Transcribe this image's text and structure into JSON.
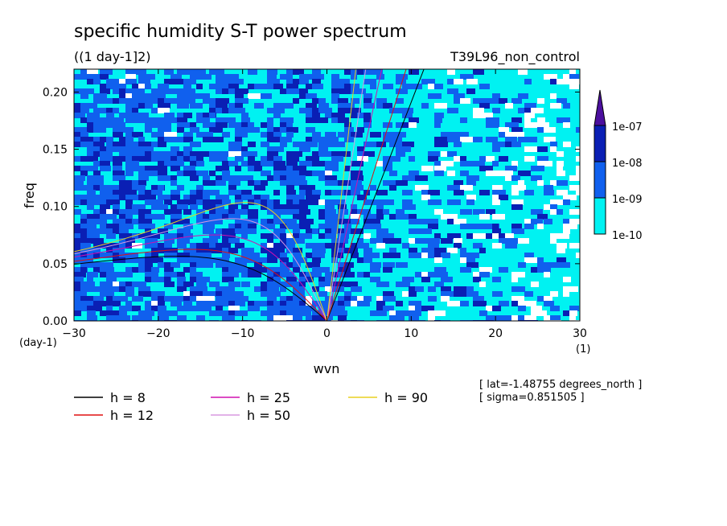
{
  "chart_data": {
    "type": "heatmap",
    "title": "specific humidity S-T power spectrum",
    "subtitle": "((1 day-1]2)",
    "run_label": "T39L96_non_control",
    "xlabel": "wvn",
    "ylabel": "freq",
    "x_unit": "(1)",
    "y_unit": "(day-1)",
    "xlim": [
      -30,
      30
    ],
    "ylim": [
      0,
      0.22
    ],
    "x_ticks": [
      "-30",
      "-20",
      "-10",
      "0",
      "10",
      "20",
      "30"
    ],
    "y_ticks": [
      "0.00",
      "0.05",
      "0.10",
      "0.15",
      "0.20"
    ],
    "colorbar": {
      "levels": [
        "1e-07",
        "1e-08",
        "1e-09",
        "1e-10"
      ],
      "colors": [
        "#4b0f9e",
        "#0a1fb4",
        "#1060ee",
        "#00f2f2",
        "#ffffff"
      ]
    },
    "info_lines": [
      "[ lat=-1.48755 degrees_north ]",
      "[ sigma=0.851505 ]"
    ],
    "series": [
      {
        "name": "h =  8",
        "color": "#000000"
      },
      {
        "name": "h = 12",
        "color": "#e01010"
      },
      {
        "name": "h = 25",
        "color": "#d010b0"
      },
      {
        "name": "h = 50",
        "color": "#d898e0"
      },
      {
        "name": "h = 90",
        "color": "#e8d020"
      }
    ]
  }
}
